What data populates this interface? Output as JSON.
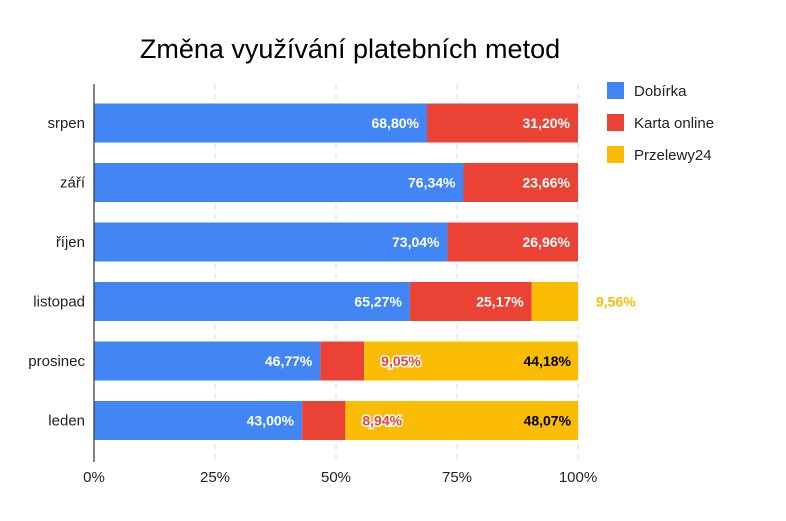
{
  "chart_data": {
    "type": "bar",
    "orientation": "horizontal",
    "stacked": "percent",
    "title": "Změna využívání platebních metod",
    "xlabel": "",
    "ylabel": "",
    "xlim": [
      0,
      100
    ],
    "grid": true,
    "legend_position": "right",
    "categories": [
      "srpen",
      "září",
      "říjen",
      "listopad",
      "prosinec",
      "leden"
    ],
    "x_ticks": [
      "0%",
      "25%",
      "50%",
      "75%",
      "100%"
    ],
    "series": [
      {
        "name": "Dobírka",
        "color": "#4285F4",
        "values": [
          68.8,
          76.34,
          73.04,
          65.27,
          46.77,
          43.0
        ],
        "labels": [
          "68,80%",
          "76,34%",
          "73,04%",
          "65,27%",
          "46,77%",
          "43,00%"
        ]
      },
      {
        "name": "Karta online",
        "color": "#EA4335",
        "values": [
          31.2,
          23.66,
          26.96,
          25.17,
          9.05,
          8.94
        ],
        "labels": [
          "31,20%",
          "23,66%",
          "26,96%",
          "25,17%",
          "9,05%",
          "8,94%"
        ]
      },
      {
        "name": "Przelewy24",
        "color": "#FBBC04",
        "values": [
          0,
          0,
          0,
          9.56,
          44.18,
          48.07
        ],
        "labels": [
          "",
          "",
          "",
          "9,56%",
          "44,18%",
          "48,07%"
        ]
      }
    ]
  }
}
